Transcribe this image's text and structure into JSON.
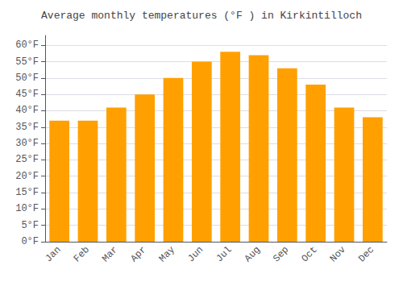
{
  "chart_data": {
    "type": "bar",
    "title": "Average monthly temperatures (°F ) in Kirkintilloch",
    "categories": [
      "Jan",
      "Feb",
      "Mar",
      "Apr",
      "May",
      "Jun",
      "Jul",
      "Aug",
      "Sep",
      "Oct",
      "Nov",
      "Dec"
    ],
    "values": [
      37,
      37,
      41,
      45,
      50,
      55,
      58,
      57,
      53,
      48,
      41,
      38
    ],
    "color": "#FFA000",
    "ylim": [
      0,
      63
    ],
    "yticks": [
      {
        "value": 0,
        "label": "0°F"
      },
      {
        "value": 5,
        "label": "5°F"
      },
      {
        "value": 10,
        "label": "10°F"
      },
      {
        "value": 15,
        "label": "15°F"
      },
      {
        "value": 20,
        "label": "20°F"
      },
      {
        "value": 25,
        "label": "25°F"
      },
      {
        "value": 30,
        "label": "30°F"
      },
      {
        "value": 35,
        "label": "35°F"
      },
      {
        "value": 40,
        "label": "40°F"
      },
      {
        "value": 45,
        "label": "45°F"
      },
      {
        "value": 50,
        "label": "50°F"
      },
      {
        "value": 55,
        "label": "55°F"
      },
      {
        "value": 60,
        "label": "60°F"
      }
    ],
    "grid": true
  }
}
